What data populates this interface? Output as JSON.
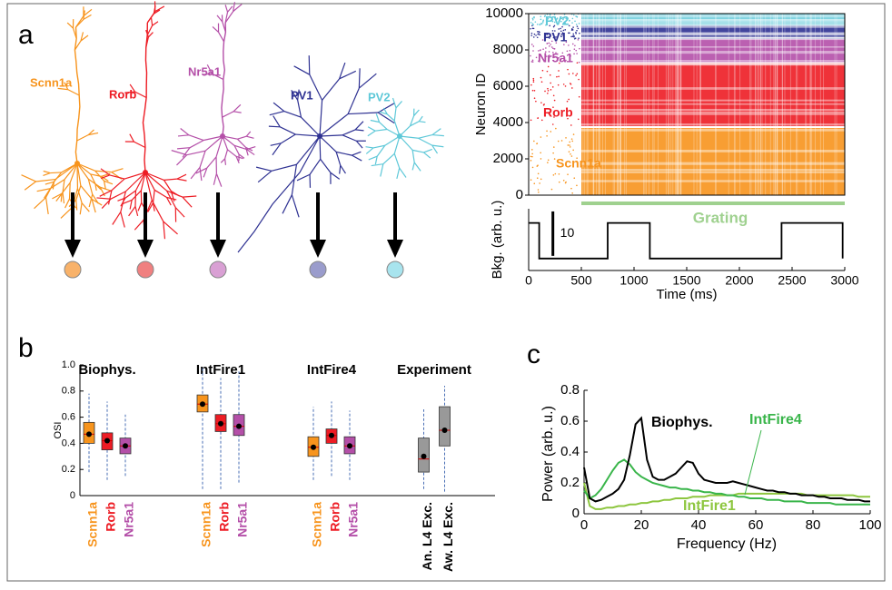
{
  "panel_labels": [
    "a",
    "b",
    "c"
  ],
  "cells": [
    {
      "name": "Scnn1a",
      "color": "#f7941d",
      "node_color": "#f8b26a"
    },
    {
      "name": "Rorb",
      "color": "#ed1c24",
      "node_color": "#f08080"
    },
    {
      "name": "Nr5a1",
      "color": "#b44fa8",
      "node_color": "#d9a0d4"
    },
    {
      "name": "PV1",
      "color": "#2e3192",
      "node_color": "#9a9ccc"
    },
    {
      "name": "PV2",
      "color": "#5ec8d8",
      "node_color": "#a8e4ee"
    }
  ],
  "chart_data": [
    {
      "type": "raster",
      "ylabel": "Neuron ID",
      "xlim": [
        0,
        3000
      ],
      "ylim": [
        0,
        10000
      ],
      "yticks": [
        0,
        2000,
        4000,
        6000,
        8000,
        10000
      ],
      "populations": [
        {
          "name": "Scnn1a",
          "color": "#f7941d",
          "range": [
            0,
            3700
          ]
        },
        {
          "name": "Rorb",
          "color": "#ed1c24",
          "range": [
            3800,
            7300
          ]
        },
        {
          "name": "Nr5a1",
          "color": "#b44fa8",
          "range": [
            7300,
            8600
          ]
        },
        {
          "name": "PV1",
          "color": "#2e3192",
          "range": [
            8600,
            9350
          ]
        },
        {
          "name": "PV2",
          "color": "#5ec8d8",
          "range": [
            9350,
            10000
          ]
        }
      ]
    },
    {
      "type": "line",
      "xlabel": "Time (ms)",
      "ylabel": "Bkg. (arb. u.)",
      "xlim": [
        0,
        3000
      ],
      "xticks": [
        0,
        500,
        1000,
        1500,
        2000,
        2500,
        3000
      ],
      "ylim": [
        -2.7,
        11.2
      ],
      "x": [
        0,
        100,
        100,
        750,
        750,
        1150,
        1150,
        2400,
        2400,
        2980,
        2980
      ],
      "values": [
        8,
        8,
        0,
        0,
        8,
        8,
        0,
        0,
        8,
        8,
        0
      ],
      "color": "#000000",
      "scale_bar": 10,
      "grating": {
        "label": "Grating",
        "color": "#9fd18f",
        "start": 500,
        "end": 3000
      }
    },
    {
      "type": "box",
      "ylabel": "OSI",
      "ylim": [
        0,
        1
      ],
      "yticks": [
        0,
        0.2,
        0.4,
        0.6,
        0.8,
        {
          "value": 1,
          "label": "1.0"
        }
      ],
      "groups": [
        {
          "name": "Biophys.",
          "boxes": [
            {
              "label": "Scnn1a",
              "color": "#f7941d",
              "whisker_low": 0.18,
              "q1": 0.4,
              "median": 0.47,
              "q3": 0.56,
              "whisker_high": 0.78,
              "mean": 0.47
            },
            {
              "label": "Rorb",
              "color": "#ed1c24",
              "whisker_low": 0.12,
              "q1": 0.35,
              "median": 0.42,
              "q3": 0.48,
              "whisker_high": 0.72,
              "mean": 0.42
            },
            {
              "label": "Nr5a1",
              "color": "#b44fa8",
              "whisker_low": 0.15,
              "q1": 0.32,
              "median": 0.38,
              "q3": 0.44,
              "whisker_high": 0.62,
              "mean": 0.38
            }
          ]
        },
        {
          "name": "IntFire1",
          "boxes": [
            {
              "label": "Scnn1a",
              "color": "#f7941d",
              "whisker_low": 0.05,
              "q1": 0.64,
              "median": 0.7,
              "q3": 0.77,
              "whisker_high": 0.98,
              "mean": 0.7
            },
            {
              "label": "Rorb",
              "color": "#ed1c24",
              "whisker_low": 0.05,
              "q1": 0.49,
              "median": 0.55,
              "q3": 0.62,
              "whisker_high": 0.9,
              "mean": 0.55
            },
            {
              "label": "Nr5a1",
              "color": "#b44fa8",
              "whisker_low": 0.1,
              "q1": 0.46,
              "median": 0.53,
              "q3": 0.62,
              "whisker_high": 0.95,
              "mean": 0.53
            }
          ]
        },
        {
          "name": "IntFire4",
          "boxes": [
            {
              "label": "Scnn1a",
              "color": "#f7941d",
              "whisker_low": 0.12,
              "q1": 0.3,
              "median": 0.37,
              "q3": 0.45,
              "whisker_high": 0.68,
              "mean": 0.37
            },
            {
              "label": "Rorb",
              "color": "#ed1c24",
              "whisker_low": 0.15,
              "q1": 0.4,
              "median": 0.46,
              "q3": 0.51,
              "whisker_high": 0.72,
              "mean": 0.46
            },
            {
              "label": "Nr5a1",
              "color": "#b44fa8",
              "whisker_low": 0.12,
              "q1": 0.32,
              "median": 0.38,
              "q3": 0.45,
              "whisker_high": 0.65,
              "mean": 0.38
            }
          ]
        },
        {
          "name": "Experiment",
          "boxes": [
            {
              "label": "An. L4 Exc.",
              "color": "#000000",
              "whisker_low": 0.05,
              "q1": 0.18,
              "median": 0.28,
              "q3": 0.44,
              "whisker_high": 0.66,
              "mean": 0.3
            },
            {
              "label": "Aw. L4 Exc.",
              "color": "#000000",
              "whisker_low": 0.03,
              "q1": 0.38,
              "median": 0.5,
              "q3": 0.68,
              "whisker_high": 0.84,
              "mean": 0.5
            }
          ]
        }
      ]
    },
    {
      "type": "line",
      "xlabel": "Frequency (Hz)",
      "ylabel": "Power (arb. u.)",
      "xlim": [
        0,
        100
      ],
      "xticks": [
        0,
        20,
        40,
        60,
        80,
        100
      ],
      "ylim": [
        0,
        0.8
      ],
      "yticks": [
        0,
        0.2,
        0.4,
        0.6,
        0.8
      ],
      "x": [
        0,
        2,
        4,
        6,
        8,
        10,
        12,
        14,
        16,
        18,
        20,
        22,
        24,
        26,
        28,
        30,
        32,
        34,
        36,
        38,
        40,
        42,
        44,
        46,
        48,
        50,
        52,
        54,
        56,
        58,
        60,
        62,
        64,
        66,
        68,
        70,
        72,
        74,
        76,
        78,
        80,
        82,
        84,
        86,
        88,
        90,
        92,
        94,
        96,
        98,
        100
      ],
      "series": [
        {
          "name": "IntFire1",
          "color": "#8dc63f",
          "values": [
            0.2,
            0.05,
            0.03,
            0.03,
            0.04,
            0.04,
            0.05,
            0.05,
            0.06,
            0.06,
            0.07,
            0.07,
            0.08,
            0.08,
            0.09,
            0.09,
            0.1,
            0.1,
            0.1,
            0.11,
            0.11,
            0.11,
            0.12,
            0.12,
            0.12,
            0.12,
            0.12,
            0.13,
            0.13,
            0.13,
            0.13,
            0.13,
            0.13,
            0.13,
            0.13,
            0.13,
            0.13,
            0.13,
            0.13,
            0.12,
            0.12,
            0.12,
            0.12,
            0.12,
            0.12,
            0.12,
            0.12,
            0.12,
            0.11,
            0.11,
            0.11
          ]
        },
        {
          "name": "IntFire4",
          "color": "#39b54a",
          "values": [
            0.15,
            0.1,
            0.12,
            0.16,
            0.22,
            0.28,
            0.33,
            0.35,
            0.32,
            0.27,
            0.24,
            0.22,
            0.2,
            0.19,
            0.18,
            0.17,
            0.17,
            0.16,
            0.16,
            0.15,
            0.15,
            0.14,
            0.14,
            0.13,
            0.13,
            0.12,
            0.12,
            0.11,
            0.11,
            0.1,
            0.1,
            0.1,
            0.09,
            0.09,
            0.09,
            0.08,
            0.08,
            0.08,
            0.08,
            0.07,
            0.07,
            0.07,
            0.07,
            0.07,
            0.06,
            0.06,
            0.06,
            0.06,
            0.06,
            0.06,
            0.06
          ]
        },
        {
          "name": "Biophys.",
          "color": "#000000",
          "values": [
            0.3,
            0.1,
            0.08,
            0.09,
            0.11,
            0.13,
            0.16,
            0.22,
            0.38,
            0.58,
            0.62,
            0.35,
            0.24,
            0.22,
            0.22,
            0.24,
            0.26,
            0.3,
            0.34,
            0.33,
            0.26,
            0.22,
            0.21,
            0.2,
            0.2,
            0.2,
            0.21,
            0.2,
            0.19,
            0.18,
            0.17,
            0.16,
            0.15,
            0.15,
            0.14,
            0.14,
            0.13,
            0.13,
            0.12,
            0.12,
            0.12,
            0.11,
            0.11,
            0.1,
            0.1,
            0.1,
            0.09,
            0.09,
            0.09,
            0.08,
            0.08
          ]
        }
      ]
    }
  ]
}
